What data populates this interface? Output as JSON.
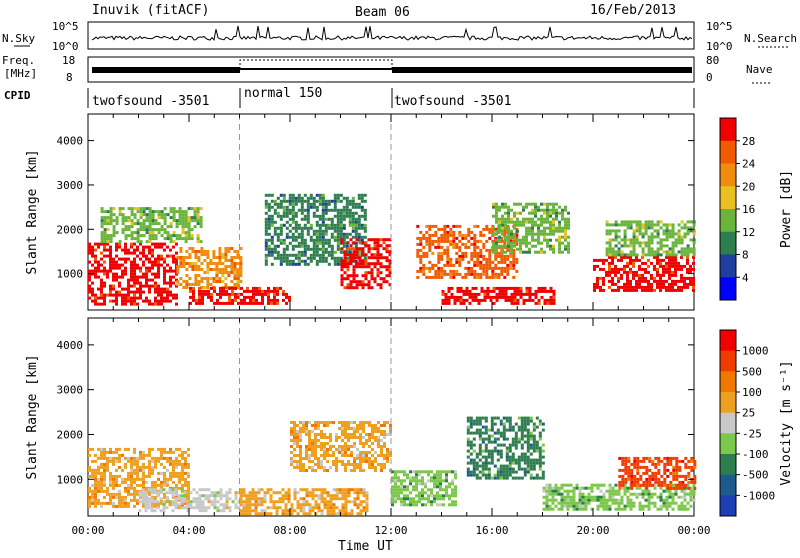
{
  "header": {
    "title": "Inuvik (fitACF)",
    "beam": "Beam 06",
    "date": "16/Feb/2013"
  },
  "panels": {
    "nsky_label": "N.Sky",
    "nsearch_label": "N.Search",
    "nsky_ticks": [
      "10^5",
      "10^0"
    ],
    "nsearch_ticks": [
      "10^5",
      "10^0"
    ],
    "freq_label_1": "Freq.",
    "freq_label_2": "[MHz]",
    "freq_ticks": [
      "18",
      "8"
    ],
    "nave_label": "Nave",
    "nave_ticks": [
      "80",
      "0"
    ],
    "cpid_label": "CPID",
    "cpid_segments": [
      {
        "name": "twofsound -3501",
        "start_h": 0,
        "end_h": 6
      },
      {
        "name": "normal 150",
        "start_h": 6,
        "end_h": 12
      },
      {
        "name": "twofsound -3501",
        "start_h": 12,
        "end_h": 24
      }
    ]
  },
  "colors": {
    "power_scale": [
      "#0000ff",
      "#1e3f9e",
      "#2e7d4f",
      "#6ab43c",
      "#e8c020",
      "#f08c10",
      "#f05a00",
      "#f00000"
    ],
    "velocity_scale": [
      "#1e3fb4",
      "#1e5a8c",
      "#2e7d4f",
      "#7cc84a",
      "#c8c8c8",
      "#f0a020",
      "#f07800",
      "#f03c00",
      "#f00000"
    ]
  },
  "chart_data": [
    {
      "type": "heatmap",
      "title": "Power",
      "xlabel": "",
      "ylabel": "Slant Range [km]",
      "xlim": [
        0,
        24
      ],
      "ylim": [
        180,
        4600
      ],
      "x_ticks": [
        "00:00",
        "04:00",
        "08:00",
        "12:00",
        "16:00",
        "20:00",
        "00:00"
      ],
      "y_ticks": [
        "1000",
        "2000",
        "3000",
        "4000"
      ],
      "colorbar": {
        "label": "Power [dB]",
        "ticks": [
          "28",
          "24",
          "20",
          "16",
          "12",
          "8",
          "4"
        ],
        "range": [
          0,
          32
        ]
      },
      "regions": [
        {
          "t0": 0.0,
          "t1": 3.5,
          "r0": 300,
          "r1": 1700,
          "value": 30
        },
        {
          "t0": 3.5,
          "t1": 6.0,
          "r0": 700,
          "r1": 1600,
          "value": 22
        },
        {
          "t0": 0.5,
          "t1": 4.5,
          "r0": 1700,
          "r1": 2500,
          "value": 14
        },
        {
          "t0": 4.0,
          "t1": 8.0,
          "r0": 350,
          "r1": 700,
          "value": 28
        },
        {
          "t0": 7.0,
          "t1": 11.0,
          "r0": 1200,
          "r1": 2800,
          "value": 10
        },
        {
          "t0": 10.0,
          "t1": 12.0,
          "r0": 700,
          "r1": 1800,
          "value": 30
        },
        {
          "t0": 13.0,
          "t1": 17.0,
          "r0": 900,
          "r1": 2100,
          "value": 26
        },
        {
          "t0": 16.0,
          "t1": 19.0,
          "r0": 1500,
          "r1": 2600,
          "value": 14
        },
        {
          "t0": 14.0,
          "t1": 18.5,
          "r0": 300,
          "r1": 700,
          "value": 30
        },
        {
          "t0": 20.0,
          "t1": 24.0,
          "r0": 600,
          "r1": 1400,
          "value": 30
        },
        {
          "t0": 20.5,
          "t1": 24.0,
          "r0": 1400,
          "r1": 2200,
          "value": 12
        }
      ]
    },
    {
      "type": "heatmap",
      "title": "Velocity",
      "xlabel": "Time UT",
      "ylabel": "Slant Range [km]",
      "xlim": [
        0,
        24
      ],
      "ylim": [
        180,
        4600
      ],
      "x_ticks": [
        "00:00",
        "04:00",
        "08:00",
        "12:00",
        "16:00",
        "20:00",
        "00:00"
      ],
      "y_ticks": [
        "1000",
        "2000",
        "3000",
        "4000"
      ],
      "colorbar": {
        "label": "Velocity [m s⁻¹]",
        "ticks": [
          "1000",
          "500",
          "100",
          "25",
          "-25",
          "-100",
          "-500",
          "-1000"
        ],
        "range": [
          -1200,
          1200
        ]
      },
      "regions": [
        {
          "t0": 0.0,
          "t1": 4.0,
          "r0": 400,
          "r1": 1700,
          "value": 150
        },
        {
          "t0": 2.0,
          "t1": 6.0,
          "r0": 300,
          "r1": 800,
          "value": 0
        },
        {
          "t0": 6.0,
          "t1": 11.0,
          "r0": 250,
          "r1": 800,
          "value": 200
        },
        {
          "t0": 8.0,
          "t1": 12.0,
          "r0": 1200,
          "r1": 2300,
          "value": 300
        },
        {
          "t0": 12.0,
          "t1": 14.5,
          "r0": 400,
          "r1": 1200,
          "value": -300
        },
        {
          "t0": 15.0,
          "t1": 18.0,
          "r0": 1000,
          "r1": 2400,
          "value": -600
        },
        {
          "t0": 18.0,
          "t1": 24.0,
          "r0": 300,
          "r1": 900,
          "value": -250
        },
        {
          "t0": 21.0,
          "t1": 24.0,
          "r0": 800,
          "r1": 1500,
          "value": 900
        }
      ]
    }
  ]
}
